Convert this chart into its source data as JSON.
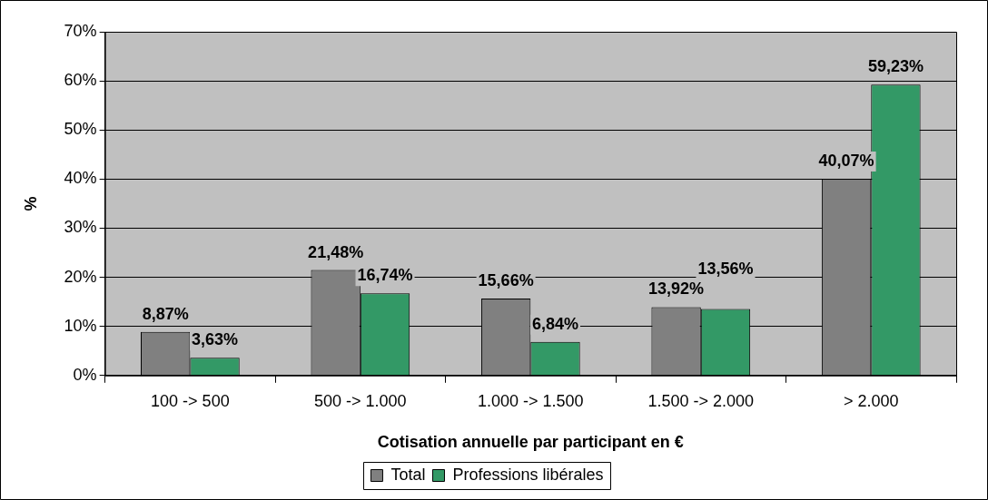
{
  "chart_data": {
    "type": "bar",
    "xlabel": "Cotisation annuelle par participant en €",
    "ylabel": "%",
    "categories": [
      "100 -> 500",
      "500 -> 1.000",
      "1.000 -> 1.500",
      "1.500 -> 2.000",
      "> 2.000"
    ],
    "series": [
      {
        "name": "Total",
        "color": "#808080",
        "values": [
          8.87,
          21.48,
          15.66,
          13.92,
          40.07
        ],
        "value_labels": [
          "8,87%",
          "21,48%",
          "15,66%",
          "13,92%",
          "40,07%"
        ]
      },
      {
        "name": "Professions libérales",
        "color": "#339966",
        "values": [
          3.63,
          16.74,
          6.84,
          13.56,
          59.23
        ],
        "value_labels": [
          "3,63%",
          "16,74%",
          "6,84%",
          "13,56%",
          "59,23%"
        ]
      }
    ],
    "ylim": [
      0,
      70
    ],
    "yticks": [
      {
        "value": 0,
        "label": "0%"
      },
      {
        "value": 10,
        "label": "10%"
      },
      {
        "value": 20,
        "label": "20%"
      },
      {
        "value": 30,
        "label": "30%"
      },
      {
        "value": 40,
        "label": "40%"
      },
      {
        "value": 50,
        "label": "50%"
      },
      {
        "value": 60,
        "label": "60%"
      },
      {
        "value": 70,
        "label": "70%"
      }
    ],
    "grid": "y",
    "legend": "bottom"
  }
}
